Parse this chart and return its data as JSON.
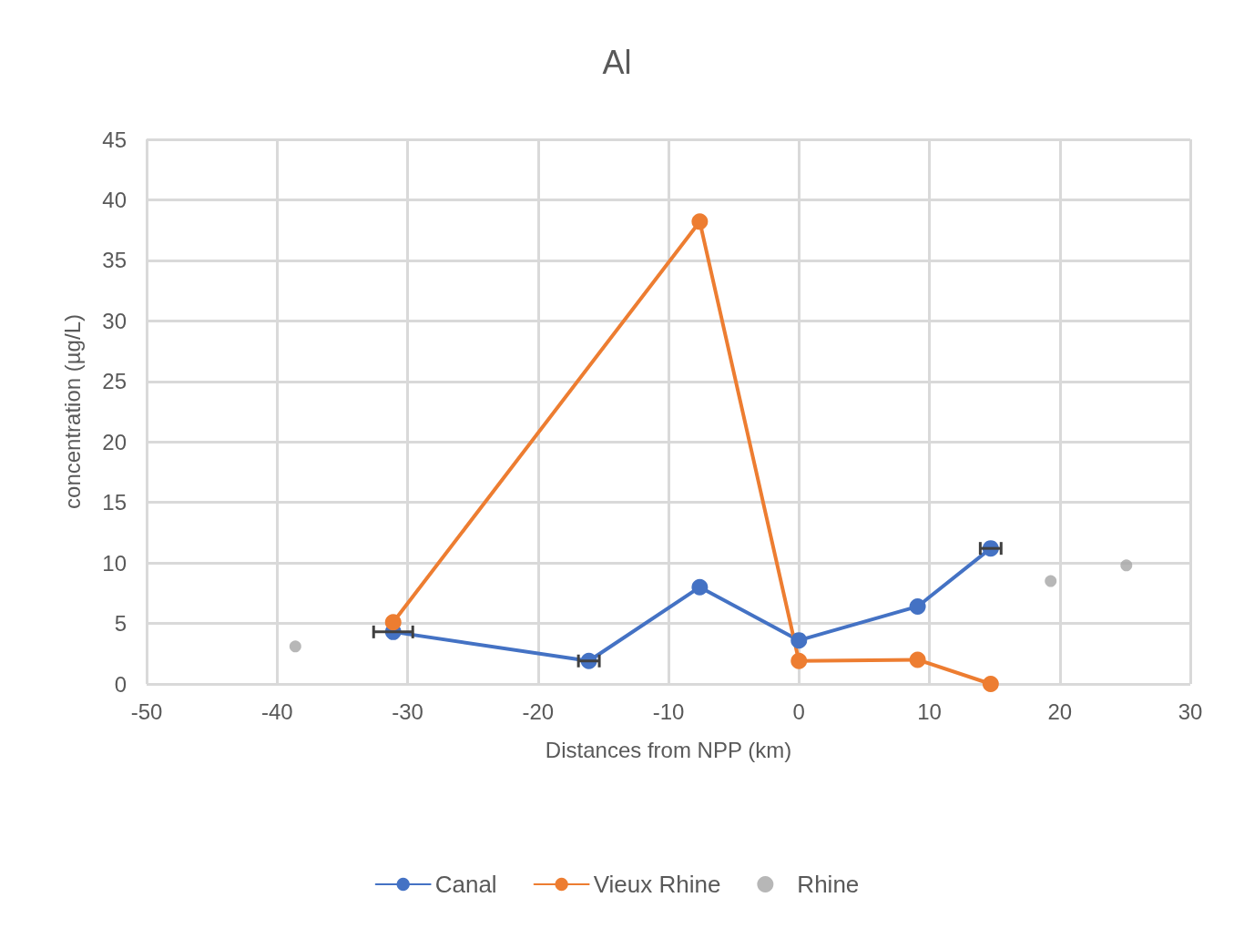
{
  "chart_data": {
    "type": "line",
    "title": "Al",
    "xlabel": "Distances from NPP (km)",
    "ylabel": "concentration (µg/L)",
    "xlim": [
      -50,
      30
    ],
    "xticks": [
      -50,
      -40,
      -30,
      -20,
      -10,
      0,
      10,
      20,
      30
    ],
    "ylim": [
      0,
      45
    ],
    "yticks": [
      0,
      5,
      10,
      15,
      20,
      25,
      30,
      35,
      40,
      45
    ],
    "grid": true,
    "legend": "bottom",
    "marker": "circle",
    "line_style": "solid",
    "series": [
      {
        "name": "Canal",
        "color": "#4472c4",
        "x": [
          -31.1,
          -16.1,
          -7.6,
          0,
          9.1,
          14.7
        ],
        "values": [
          4.3,
          1.9,
          8.0,
          3.6,
          6.4,
          11.2
        ],
        "xerrors": [
          1.5,
          0.8,
          null,
          null,
          null,
          0.8
        ]
      },
      {
        "name": "Vieux Rhine",
        "color": "#ed7d31",
        "x": [
          -31.1,
          -7.6,
          0,
          9.1,
          14.7
        ],
        "values": [
          5.1,
          38.2,
          1.9,
          2.0,
          0
        ]
      },
      {
        "name": "Rhine",
        "type": "scatter",
        "color": "#a5a5a5",
        "x": [
          -38.6,
          19.3,
          25.1
        ],
        "values": [
          3.1,
          8.5,
          9.8
        ]
      }
    ]
  }
}
